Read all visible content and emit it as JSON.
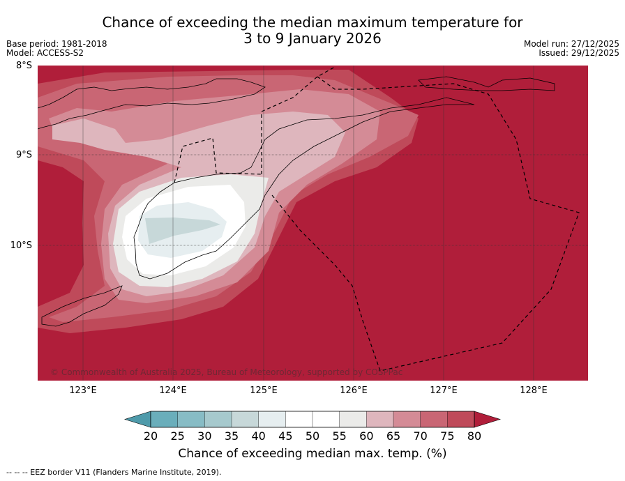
{
  "title_line1": "Chance of exceeding the median maximum temperature for",
  "title_line2": "3 to 9 January 2026",
  "base_period": "Base period: 1981-2018",
  "model": "Model: ACCESS-S2",
  "model_run": "Model run: 27/12/2025",
  "issued": "Issued: 29/12/2025",
  "latitudes": [
    "8°S",
    "9°S",
    "10°S"
  ],
  "longitudes": [
    "123°E",
    "124°E",
    "125°E",
    "126°E",
    "127°E",
    "128°E"
  ],
  "copyright": "© Commonwealth of Australia 2025, Bureau of Meteorology, supported by COSPPac",
  "colorbar": {
    "ticks": [
      "20",
      "25",
      "30",
      "35",
      "40",
      "45",
      "50",
      "55",
      "60",
      "65",
      "70",
      "75",
      "80"
    ],
    "colors": [
      "#4e9aaa",
      "#6aaebb",
      "#87bcc5",
      "#a6c9cd",
      "#c7d8d9",
      "#e6eef0",
      "#ffffff",
      "#ffffff",
      "#ebebe9",
      "#deb6bd",
      "#d48b96",
      "#c96674",
      "#bf4a5a",
      "#b01e3a"
    ],
    "label": "Chance of exceeding median max. temp. (%)"
  },
  "footer": "--  --  -- EEZ border V11 (Flanders Marine Institute, 2019)."
}
